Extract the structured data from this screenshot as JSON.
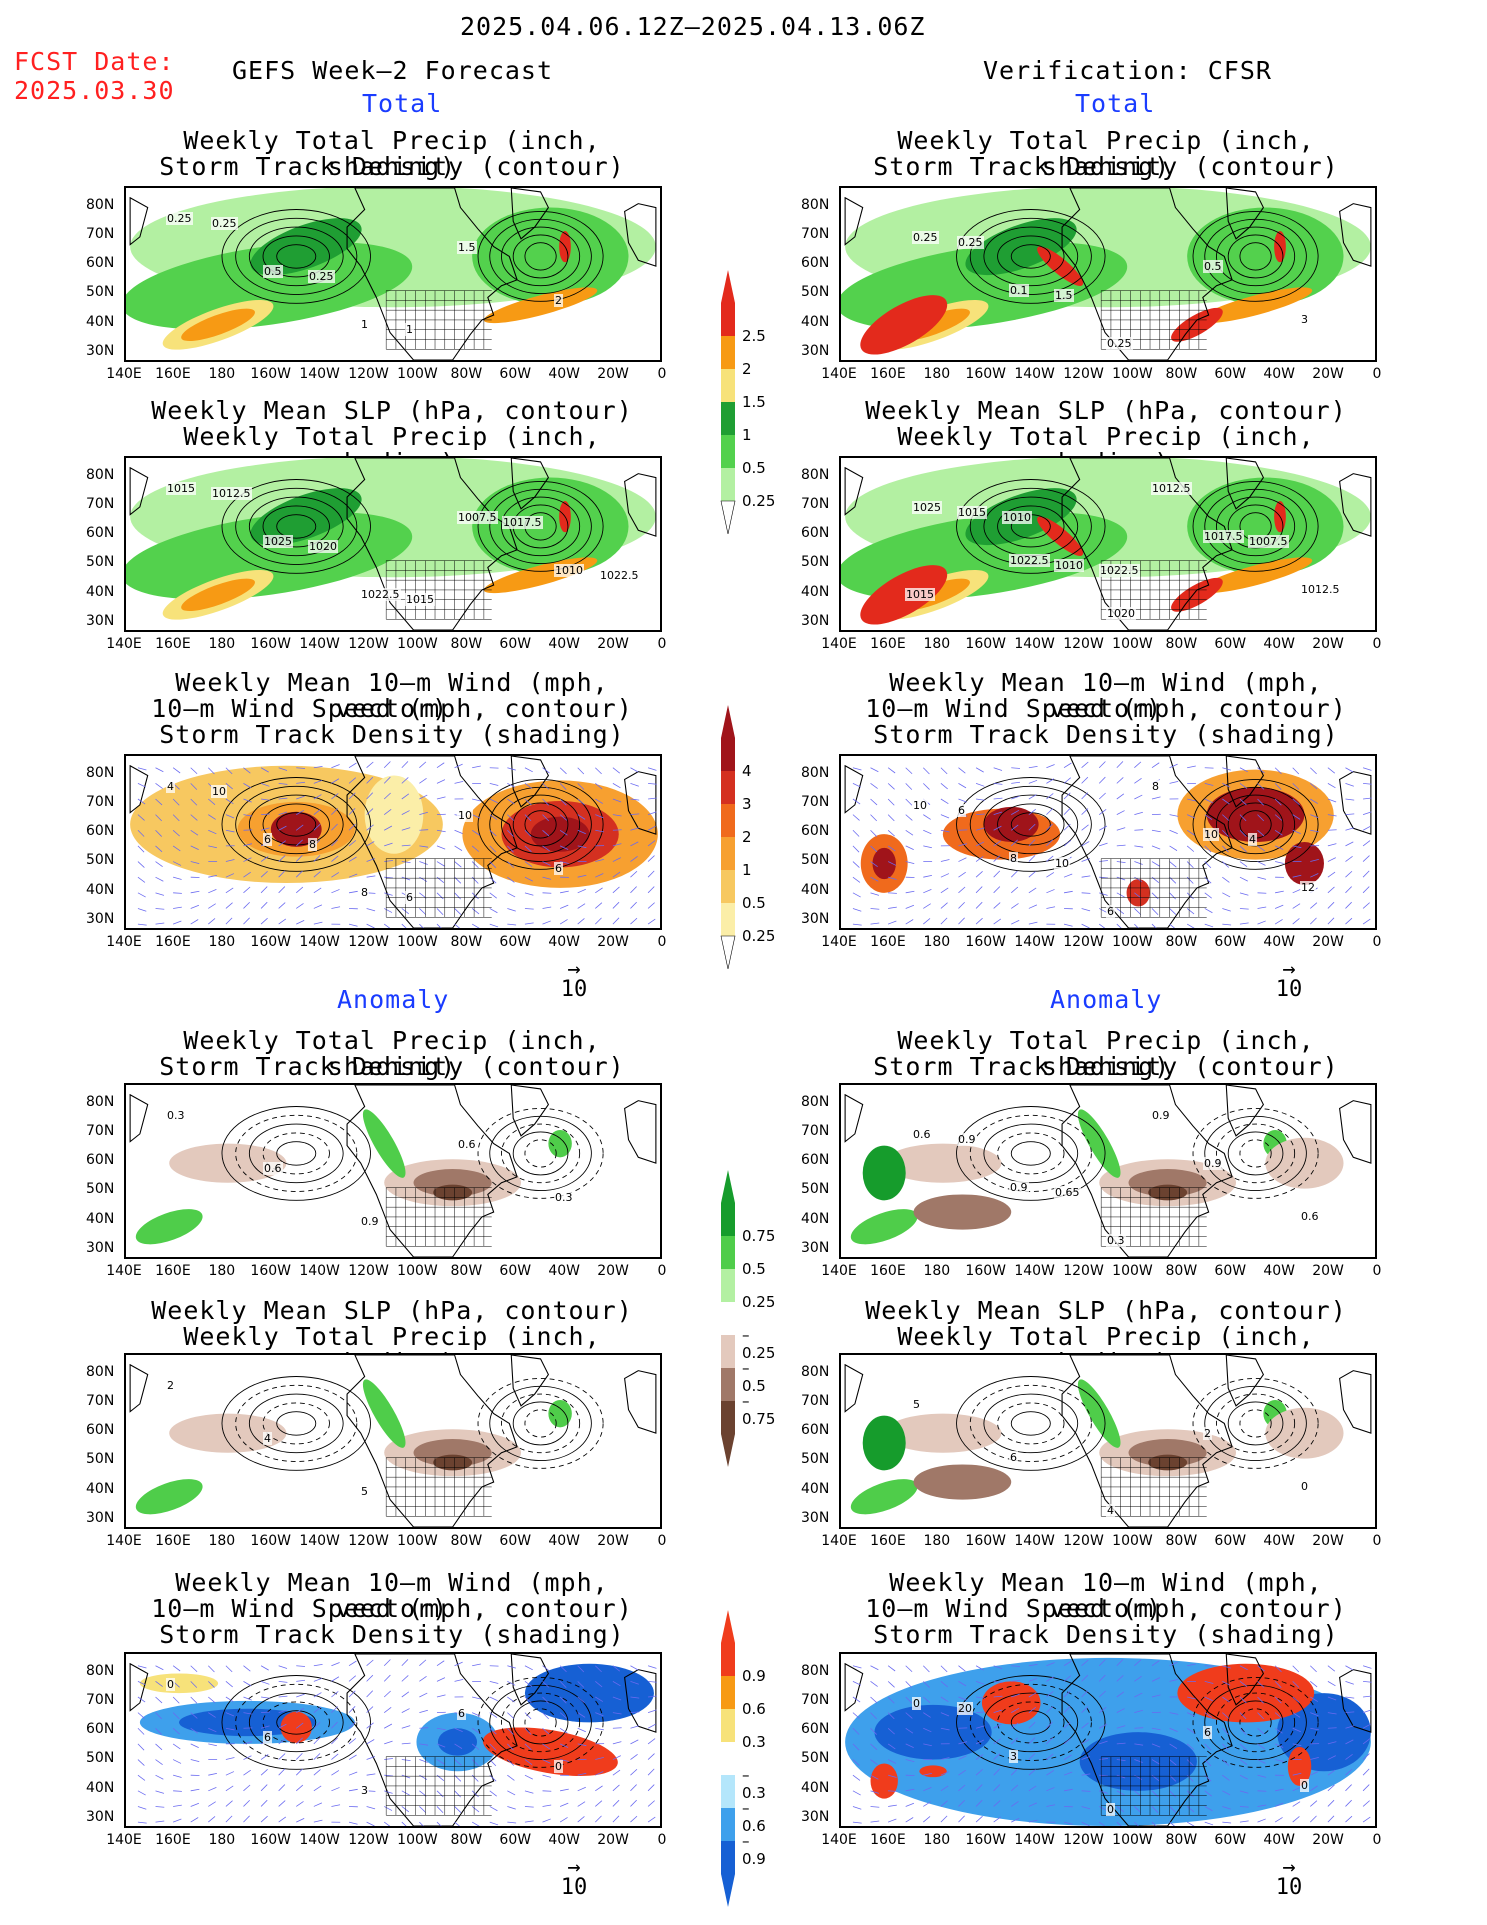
{
  "header": {
    "date_range": "2025.04.06.12Z–2025.04.13.06Z",
    "fcst_label": "FCST Date:",
    "fcst_date": "2025.03.30",
    "left_title": "GEFS Week–2 Forecast",
    "right_title": "Verification: CFSR"
  },
  "sections": {
    "total": "Total",
    "anomaly": "Anomaly"
  },
  "panel_titles": {
    "precip_storm": [
      "Weekly Total Precip (inch, shading)",
      "Storm Track Density (contour)"
    ],
    "slp_precip": [
      "Weekly Mean SLP (hPa, contour)",
      "Weekly Total Precip (inch, shading)"
    ],
    "wind": [
      "Weekly Mean 10–m Wind (mph, vector)",
      "10–m Wind Speed (mph, contour)",
      "Storm Track Density (shading)"
    ]
  },
  "axes": {
    "lat_labels": [
      "80N",
      "70N",
      "60N",
      "50N",
      "40N",
      "30N"
    ],
    "lon_labels": [
      "140E",
      "160E",
      "180",
      "160W",
      "140W",
      "120W",
      "100W",
      "80W",
      "60W",
      "40W",
      "20W",
      "0"
    ]
  },
  "vector_ref": {
    "arrow": "→",
    "value": "10"
  },
  "colorbars": {
    "total_precip": {
      "labels": [
        "2.5",
        "2",
        "1.5",
        "1",
        "0.5",
        "0.25"
      ],
      "colors": [
        "#e32a1c",
        "#f79a14",
        "#f7e27a",
        "#1f9e33",
        "#53d14d",
        "#b3f0a2"
      ]
    },
    "total_storm": {
      "labels": [
        "4",
        "3",
        "2",
        "1",
        "0.5",
        "0.25"
      ],
      "colors": [
        "#a0141a",
        "#d43020",
        "#f06a1c",
        "#f7a030",
        "#f7c860",
        "#fbeea8"
      ]
    },
    "anom_precip": {
      "labels": [
        "0.75",
        "0.5",
        "0.25",
        "–0.25",
        "–0.5",
        "–0.75"
      ],
      "colors": [
        "#169c2c",
        "#4fcd4a",
        "#b3f0a2",
        "#e3c9bd",
        "#a07868",
        "#6b4230"
      ]
    },
    "anom_storm": {
      "labels": [
        "0.9",
        "0.6",
        "0.3",
        "–0.3",
        "–0.6",
        "–0.9"
      ],
      "colors": [
        "#f03c1c",
        "#f79a14",
        "#f7e27a",
        "#b4e6fb",
        "#3ea0ec",
        "#1660d4"
      ]
    }
  },
  "map_annotations": {
    "fc_precip": [
      "0.25",
      "0.5",
      "1",
      "1.5",
      "2",
      "0.25",
      "0.25",
      "1"
    ],
    "obs_precip": [
      "0.25",
      "0.1",
      "0.25",
      "0.5",
      "3",
      "0.25",
      "1.5"
    ],
    "fc_slp": [
      "1015",
      "1025",
      "1022.5",
      "1007.5",
      "1010",
      "1012.5",
      "1020",
      "1015",
      "1017.5",
      "1022.5"
    ],
    "obs_slp": [
      "1025",
      "1022.5",
      "1020",
      "1017.5",
      "1012.5",
      "1015",
      "1010",
      "1012.5",
      "1007.5",
      "1015",
      "1010",
      "1022.5"
    ],
    "fc_wind": [
      "4",
      "6",
      "8",
      "10",
      "6",
      "10",
      "8",
      "6"
    ],
    "obs_wind": [
      "10",
      "8",
      "6",
      "10",
      "12",
      "6",
      "10",
      "8",
      "4"
    ],
    "fc_anom_precip": [
      "0.3",
      "0.6",
      "0.9",
      "0.6",
      "0.3"
    ],
    "obs_anom_precip": [
      "0.6",
      "0.9",
      "0.3",
      "0.9",
      "0.6",
      "0.9",
      "0.65",
      "0.9"
    ],
    "fc_anom_slp": [
      "2",
      "4",
      "5"
    ],
    "obs_anom_slp": [
      "5",
      "6",
      "4",
      "2",
      "0"
    ],
    "fc_anom_wind": [
      "0",
      "6",
      "3",
      "6",
      "0"
    ],
    "obs_anom_wind": [
      "0",
      "3",
      "0",
      "6",
      "0",
      "20"
    ]
  }
}
